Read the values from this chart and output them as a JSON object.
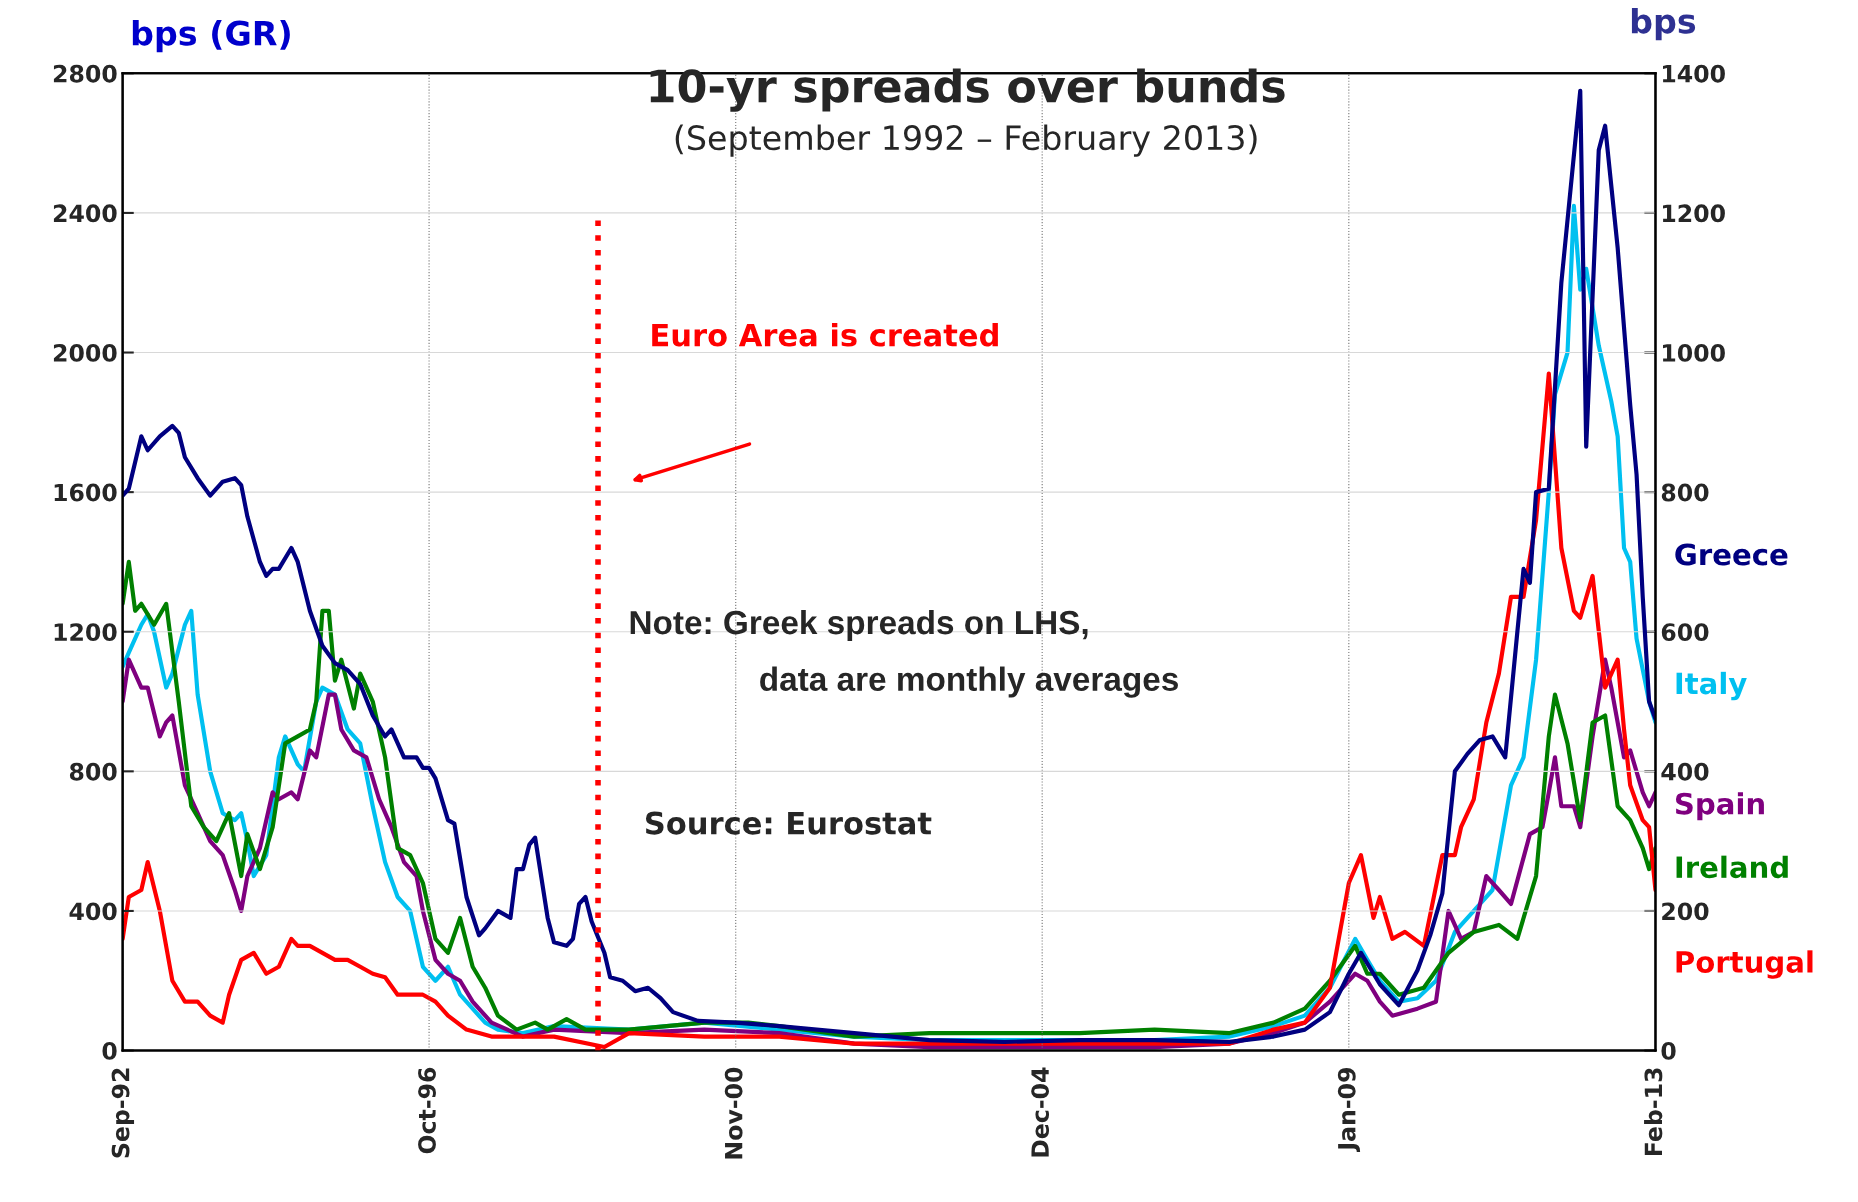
{
  "chart_data": {
    "type": "line",
    "title": "10-yr spreads over bunds",
    "subtitle": "(September 1992 – February 2013)",
    "ylabel": "bps (GR)",
    "y2label": "bps",
    "annotations": [
      "Note: Greek spreads on LHS, data are monthly averages",
      "Source: Eurostat"
    ],
    "ref_lines": [
      {
        "axis": "x",
        "value": "1999-01",
        "label": "Euro Area is created",
        "color": "#ff0000",
        "line_style": "dotted"
      }
    ],
    "xlim": [
      "1992-09",
      "2013-02"
    ],
    "xticks": [
      {
        "value": "1992-09",
        "label": "Sep-92"
      },
      {
        "value": "1996-10",
        "label": "Oct-96"
      },
      {
        "value": "2000-11",
        "label": "Nov-00"
      },
      {
        "value": "2004-12",
        "label": "Dec-04"
      },
      {
        "value": "2009-01",
        "label": "Jan-09"
      },
      {
        "value": "2013-02",
        "label": "Feb-13"
      }
    ],
    "ylim": [
      0,
      2800
    ],
    "yticks": [
      0,
      400,
      800,
      1200,
      1600,
      2000,
      2400,
      2800
    ],
    "y2lim": [
      0,
      1400
    ],
    "y2ticks": [
      0,
      200,
      400,
      600,
      800,
      1000,
      1200,
      1400
    ],
    "grid": true,
    "legend": false,
    "marker": "none",
    "line_style": "solid",
    "series": [
      {
        "name": "Greece",
        "color": "#000080",
        "x": [
          "1992-09",
          "1992-10",
          "1992-12",
          "1993-01",
          "1993-03",
          "1993-05",
          "1993-06",
          "1993-07",
          "1993-09",
          "1993-11",
          "1994-01",
          "1994-03",
          "1994-04",
          "1994-05",
          "1994-07",
          "1994-08",
          "1994-09",
          "1994-10",
          "1994-12",
          "1995-01",
          "1995-03",
          "1995-05",
          "1995-07",
          "1995-09",
          "1995-11",
          "1996-01",
          "1996-03",
          "1996-04",
          "1996-06",
          "1996-08",
          "1996-09",
          "1996-10",
          "1996-11",
          "1997-01",
          "1997-02",
          "1997-04",
          "1997-06",
          "1997-07",
          "1997-09",
          "1997-11",
          "1997-12",
          "1998-01",
          "1998-02",
          "1998-03",
          "1998-05",
          "1998-06",
          "1998-08",
          "1998-09",
          "1998-10",
          "1998-11",
          "1998-12",
          "1999-02",
          "1999-03",
          "1999-05",
          "1999-07",
          "1999-09",
          "1999-11",
          "2000-01",
          "2000-05",
          "2000-11",
          "2001-06",
          "2002-06",
          "2003-06",
          "2004-06",
          "2005-06",
          "2006-06",
          "2007-06",
          "2008-01",
          "2008-06",
          "2008-10",
          "2009-01",
          "2009-03",
          "2009-06",
          "2009-09",
          "2009-12",
          "2010-02",
          "2010-04",
          "2010-06",
          "2010-08",
          "2010-10",
          "2010-12",
          "2011-02",
          "2011-04",
          "2011-05",
          "2011-06",
          "2011-07",
          "2011-09",
          "2011-11",
          "2012-02",
          "2012-03",
          "2012-05",
          "2012-06",
          "2012-08",
          "2012-10",
          "2012-11",
          "2012-12",
          "2013-01",
          "2013-02"
        ],
        "values": [
          1590,
          1610,
          1760,
          1720,
          1760,
          1790,
          1770,
          1700,
          1640,
          1590,
          1630,
          1640,
          1620,
          1530,
          1400,
          1360,
          1380,
          1380,
          1440,
          1400,
          1260,
          1160,
          1110,
          1090,
          1050,
          960,
          900,
          920,
          840,
          840,
          810,
          810,
          780,
          660,
          650,
          440,
          330,
          350,
          400,
          380,
          520,
          520,
          590,
          610,
          380,
          310,
          300,
          320,
          420,
          440,
          370,
          280,
          210,
          200,
          170,
          180,
          150,
          110,
          85,
          80,
          70,
          50,
          30,
          25,
          30,
          30,
          25,
          40,
          60,
          110,
          220,
          280,
          190,
          130,
          230,
          330,
          450,
          800,
          850,
          890,
          900,
          840,
          1200,
          1380,
          1340,
          1600,
          1610,
          2200,
          2750,
          1730,
          2580,
          2650,
          2300,
          1850,
          1650,
          1300,
          1000,
          950
        ]
      },
      {
        "name": "Italy",
        "color": "#00c0f0",
        "axis": "y2",
        "x": [
          "1992-09",
          "1992-10",
          "1992-12",
          "1993-01",
          "1993-02",
          "1993-04",
          "1993-05",
          "1993-07",
          "1993-08",
          "1993-09",
          "1993-11",
          "1994-01",
          "1994-03",
          "1994-04",
          "1994-05",
          "1994-06",
          "1994-08",
          "1994-10",
          "1994-11",
          "1995-01",
          "1995-02",
          "1995-04",
          "1995-05",
          "1995-07",
          "1995-09",
          "1995-11",
          "1996-01",
          "1996-03",
          "1996-05",
          "1996-07",
          "1996-09",
          "1996-11",
          "1997-01",
          "1997-03",
          "1997-05",
          "1997-07",
          "1997-09",
          "1998-01",
          "1998-06",
          "1999-06",
          "2000-06",
          "2001-06",
          "2002-06",
          "2003-06",
          "2004-06",
          "2005-06",
          "2006-06",
          "2007-06",
          "2008-01",
          "2008-06",
          "2008-10",
          "2009-02",
          "2009-04",
          "2009-06",
          "2009-09",
          "2009-12",
          "2010-03",
          "2010-06",
          "2010-09",
          "2010-12",
          "2011-03",
          "2011-05",
          "2011-07",
          "2011-09",
          "2011-10",
          "2011-12",
          "2012-01",
          "2012-02",
          "2012-03",
          "2012-05",
          "2012-07",
          "2012-08",
          "2012-09",
          "2012-10",
          "2012-11",
          "2013-01",
          "2013-02"
        ],
        "values": [
          550,
          570,
          610,
          625,
          600,
          520,
          540,
          610,
          630,
          510,
          400,
          340,
          330,
          340,
          300,
          250,
          280,
          420,
          450,
          410,
          400,
          500,
          520,
          510,
          460,
          440,
          350,
          270,
          220,
          200,
          120,
          100,
          120,
          80,
          60,
          40,
          30,
          25,
          35,
          30,
          40,
          30,
          20,
          15,
          15,
          15,
          15,
          20,
          35,
          50,
          90,
          160,
          130,
          100,
          70,
          75,
          100,
          170,
          200,
          230,
          380,
          420,
          560,
          800,
          940,
          1000,
          1210,
          1090,
          1120,
          1010,
          930,
          880,
          720,
          700,
          590,
          500,
          470
        ]
      },
      {
        "name": "Spain",
        "color": "#7f007f",
        "axis": "y2",
        "x": [
          "1992-09",
          "1992-10",
          "1992-12",
          "1993-01",
          "1993-03",
          "1993-04",
          "1993-05",
          "1993-07",
          "1993-09",
          "1993-11",
          "1994-01",
          "1994-03",
          "1994-04",
          "1994-05",
          "1994-07",
          "1994-09",
          "1994-10",
          "1994-12",
          "1995-01",
          "1995-03",
          "1995-04",
          "1995-06",
          "1995-07",
          "1995-08",
          "1995-10",
          "1995-12",
          "1996-02",
          "1996-04",
          "1996-06",
          "1996-08",
          "1996-09",
          "1996-11",
          "1997-01",
          "1997-03",
          "1997-05",
          "1997-08",
          "1998-01",
          "1998-06",
          "1999-06",
          "2000-06",
          "2001-06",
          "2002-06",
          "2003-06",
          "2004-06",
          "2005-06",
          "2006-06",
          "2007-06",
          "2008-01",
          "2008-06",
          "2008-10",
          "2009-02",
          "2009-04",
          "2009-06",
          "2009-08",
          "2009-12",
          "2010-03",
          "2010-05",
          "2010-07",
          "2010-09",
          "2010-11",
          "2011-01",
          "2011-03",
          "2011-06",
          "2011-08",
          "2011-09",
          "2011-10",
          "2011-11",
          "2012-01",
          "2012-02",
          "2012-04",
          "2012-06",
          "2012-07",
          "2012-09",
          "2012-10",
          "2012-12",
          "2013-01",
          "2013-02"
        ],
        "values": [
          500,
          560,
          520,
          520,
          450,
          470,
          480,
          380,
          340,
          300,
          280,
          230,
          200,
          250,
          290,
          370,
          360,
          370,
          360,
          430,
          420,
          510,
          510,
          460,
          430,
          420,
          360,
          320,
          270,
          250,
          200,
          130,
          110,
          100,
          70,
          40,
          20,
          30,
          25,
          30,
          25,
          10,
          5,
          5,
          5,
          5,
          10,
          25,
          40,
          70,
          110,
          100,
          70,
          50,
          60,
          70,
          200,
          160,
          170,
          250,
          230,
          210,
          310,
          320,
          370,
          420,
          350,
          350,
          320,
          450,
          560,
          520,
          420,
          430,
          370,
          350,
          370
        ]
      },
      {
        "name": "Ireland",
        "color": "#008000",
        "axis": "y2",
        "x": [
          "1992-09",
          "1992-10",
          "1992-11",
          "1992-12",
          "1993-02",
          "1993-04",
          "1993-06",
          "1993-08",
          "1993-10",
          "1993-12",
          "1994-02",
          "1994-04",
          "1994-05",
          "1994-07",
          "1994-09",
          "1994-11",
          "1995-01",
          "1995-03",
          "1995-04",
          "1995-05",
          "1995-06",
          "1995-07",
          "1995-08",
          "1995-10",
          "1995-11",
          "1996-01",
          "1996-03",
          "1996-05",
          "1996-07",
          "1996-09",
          "1996-11",
          "1997-01",
          "1997-03",
          "1997-05",
          "1997-07",
          "1997-09",
          "1997-12",
          "1998-03",
          "1998-05",
          "1998-08",
          "1998-11",
          "1999-06",
          "2000-06",
          "2001-01",
          "2001-06",
          "2002-06",
          "2003-06",
          "2004-06",
          "2005-06",
          "2006-06",
          "2007-06",
          "2008-01",
          "2008-06",
          "2008-10",
          "2009-02",
          "2009-04",
          "2009-06",
          "2009-09",
          "2010-01",
          "2010-05",
          "2010-09",
          "2011-01",
          "2011-04",
          "2011-07",
          "2011-09",
          "2011-10",
          "2011-12",
          "2012-02",
          "2012-04",
          "2012-06",
          "2012-08",
          "2012-10",
          "2012-12",
          "2013-01",
          "2013-02"
        ],
        "values": [
          640,
          700,
          630,
          640,
          610,
          640,
          500,
          350,
          320,
          300,
          340,
          250,
          310,
          260,
          320,
          440,
          450,
          460,
          500,
          630,
          630,
          530,
          560,
          490,
          540,
          500,
          420,
          290,
          280,
          240,
          160,
          140,
          190,
          120,
          90,
          50,
          30,
          40,
          30,
          45,
          30,
          30,
          40,
          40,
          35,
          20,
          25,
          25,
          25,
          30,
          25,
          40,
          60,
          100,
          150,
          110,
          110,
          80,
          90,
          140,
          170,
          180,
          160,
          250,
          450,
          510,
          440,
          330,
          470,
          480,
          350,
          330,
          290,
          260,
          290
        ]
      },
      {
        "name": "Portugal",
        "color": "#ff0000",
        "axis": "y2",
        "x": [
          "1992-09",
          "1992-10",
          "1992-12",
          "1993-01",
          "1993-03",
          "1993-05",
          "1993-07",
          "1993-09",
          "1993-11",
          "1994-01",
          "1994-02",
          "1994-04",
          "1994-06",
          "1994-08",
          "1994-10",
          "1994-12",
          "1995-01",
          "1995-03",
          "1995-05",
          "1995-07",
          "1995-09",
          "1995-11",
          "1996-01",
          "1996-03",
          "1996-05",
          "1996-07",
          "1996-09",
          "1996-11",
          "1997-01",
          "1997-04",
          "1997-08",
          "1998-01",
          "1998-06",
          "1999-02",
          "1999-06",
          "2000-06",
          "2001-06",
          "2002-06",
          "2003-06",
          "2004-06",
          "2005-06",
          "2006-06",
          "2007-06",
          "2008-01",
          "2008-06",
          "2008-10",
          "2009-01",
          "2009-03",
          "2009-05",
          "2009-06",
          "2009-08",
          "2009-10",
          "2010-01",
          "2010-04",
          "2010-06",
          "2010-07",
          "2010-09",
          "2010-11",
          "2011-01",
          "2011-03",
          "2011-05",
          "2011-07",
          "2011-09",
          "2011-11",
          "2012-01",
          "2012-02",
          "2012-04",
          "2012-06",
          "2012-08",
          "2012-09",
          "2012-10",
          "2012-12",
          "2013-01",
          "2013-02"
        ],
        "values": [
          160,
          220,
          230,
          270,
          200,
          100,
          70,
          70,
          50,
          40,
          80,
          130,
          140,
          110,
          120,
          160,
          150,
          150,
          140,
          130,
          130,
          120,
          110,
          105,
          80,
          80,
          80,
          70,
          50,
          30,
          20,
          20,
          20,
          5,
          25,
          20,
          20,
          10,
          10,
          10,
          10,
          10,
          10,
          30,
          40,
          90,
          240,
          280,
          190,
          220,
          160,
          170,
          150,
          280,
          280,
          320,
          360,
          470,
          540,
          650,
          650,
          760,
          970,
          720,
          630,
          620,
          680,
          520,
          560,
          460,
          380,
          330,
          320,
          230
        ]
      }
    ]
  }
}
